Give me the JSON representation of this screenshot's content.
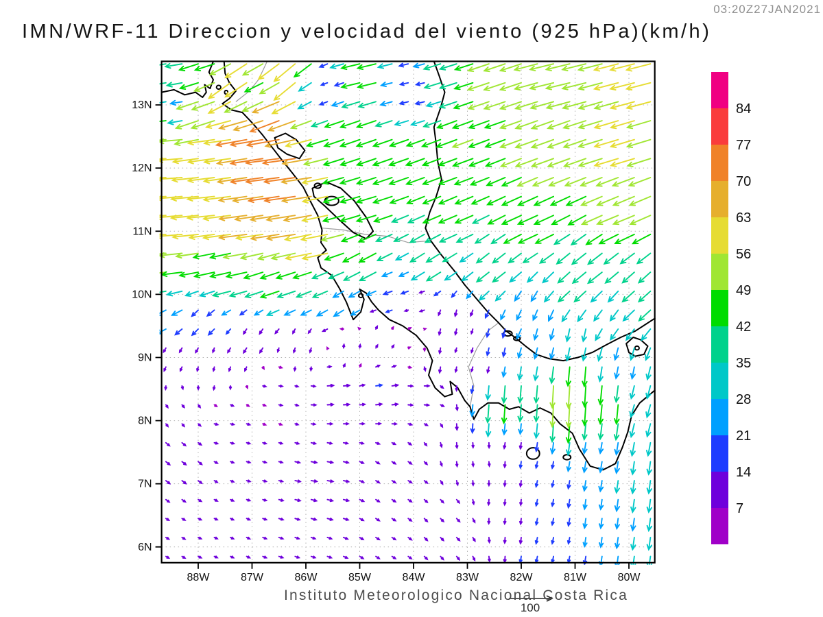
{
  "header": {
    "title": "IMN/WRF-11 Direccion y velocidad del viento (925 hPa)(km/h)",
    "timestamp": "03:20Z27JAN2021"
  },
  "footer": {
    "caption": "Instituto Meteorologico Nacional Costa Rica",
    "ref_arrow_label": "100"
  },
  "chart_data": {
    "type": "vector_field_map",
    "variable": "wind direction and speed",
    "pressure_level_hPa": 925,
    "units": "km/h",
    "model": "IMN/WRF-11",
    "valid_time": "03:20Z27JAN2021",
    "reference_vector": {
      "speed": 100,
      "label": "100"
    },
    "map_bounds": {
      "west_w": 88.68,
      "east_w": 79.52,
      "south": 5.75,
      "north": 13.69
    },
    "vector_grid": {
      "step_deg": 0.3,
      "lon_start_w": 88.6,
      "lon_cols": 31,
      "lat_start": 5.85,
      "lat_rows": 27
    },
    "lon_axis": {
      "ticks_w": [
        88,
        87,
        86,
        85,
        84,
        83,
        82,
        81,
        80
      ],
      "labels": [
        "88W",
        "87W",
        "86W",
        "85W",
        "84W",
        "83W",
        "82W",
        "81W",
        "80W"
      ]
    },
    "lat_axis": {
      "ticks_n": [
        6,
        7,
        8,
        9,
        10,
        11,
        12,
        13
      ],
      "labels": [
        "6N",
        "7N",
        "8N",
        "9N",
        "10N",
        "11N",
        "12N",
        "13N"
      ]
    },
    "speed_scale": {
      "levels": [
        7,
        14,
        21,
        28,
        35,
        42,
        49,
        56,
        63,
        70,
        77,
        84
      ],
      "colors": [
        "#A000C8",
        "#6E00DC",
        "#1E3CFF",
        "#00A0FF",
        "#00C8C8",
        "#00D28C",
        "#00DC00",
        "#A0E632",
        "#E6DC32",
        "#E6AF2D",
        "#F08228",
        "#FA3C3C",
        "#F00082"
      ]
    },
    "wind_anchors": [
      [
        88.55,
        13.55,
        -38,
        -6
      ],
      [
        87.6,
        13.6,
        -44,
        -14
      ],
      [
        87.35,
        13.45,
        -50,
        -36
      ],
      [
        86.2,
        13.5,
        -48,
        -40
      ],
      [
        86.7,
        13.2,
        -40,
        -20
      ],
      [
        85.6,
        13.35,
        -14,
        -5
      ],
      [
        84.9,
        13.55,
        -42,
        -10
      ],
      [
        84.0,
        13.3,
        -18,
        -4
      ],
      [
        83.3,
        13.55,
        -38,
        -12
      ],
      [
        82.4,
        13.45,
        -48,
        -16
      ],
      [
        81.2,
        13.55,
        -54,
        -13
      ],
      [
        79.8,
        13.6,
        -55,
        -14
      ],
      [
        88.3,
        13.0,
        -26,
        -4
      ],
      [
        87.9,
        12.9,
        -52,
        -18
      ],
      [
        86.6,
        12.9,
        -66,
        -26
      ],
      [
        86.75,
        12.45,
        -74,
        -12
      ],
      [
        86.5,
        12.0,
        -76,
        -10
      ],
      [
        86.3,
        11.65,
        -70,
        -10
      ],
      [
        87.6,
        12.3,
        -60,
        -8
      ],
      [
        88.55,
        12.4,
        -55,
        -4
      ],
      [
        88.55,
        11.9,
        -58,
        -4
      ],
      [
        87.9,
        11.4,
        -62,
        -6
      ],
      [
        88.55,
        11.0,
        -62,
        -5
      ],
      [
        87.2,
        11.0,
        -63,
        -8
      ],
      [
        86.3,
        11.1,
        -65,
        -10
      ],
      [
        85.75,
        10.85,
        -60,
        -12
      ],
      [
        88.55,
        10.45,
        -52,
        -5
      ],
      [
        87.4,
        10.5,
        -46,
        -10
      ],
      [
        88.55,
        10.15,
        -38,
        -6
      ],
      [
        86.5,
        10.3,
        -42,
        -14
      ],
      [
        88.55,
        9.85,
        -24,
        -12
      ],
      [
        85.0,
        12.6,
        -44,
        -15
      ],
      [
        84.3,
        12.1,
        -43,
        -15
      ],
      [
        84.9,
        11.4,
        -44,
        -13
      ],
      [
        83.0,
        12.4,
        -46,
        -17
      ],
      [
        81.4,
        12.4,
        -50,
        -18
      ],
      [
        80.1,
        12.4,
        -54,
        -16
      ],
      [
        80.1,
        11.4,
        -48,
        -20
      ],
      [
        81.7,
        11.3,
        -44,
        -20
      ],
      [
        83.2,
        11.3,
        -40,
        -17
      ],
      [
        83.3,
        12.0,
        -40,
        -15
      ],
      [
        84.8,
        10.55,
        -38,
        -20
      ],
      [
        83.6,
        10.55,
        -32,
        -20
      ],
      [
        82.4,
        10.45,
        -28,
        -22
      ],
      [
        80.6,
        10.45,
        -32,
        -25
      ],
      [
        79.8,
        10.0,
        -27,
        -24
      ],
      [
        84.35,
        10.05,
        -19,
        -7
      ],
      [
        85.5,
        10.2,
        -34,
        -14
      ],
      [
        85.3,
        9.9,
        -22,
        -14
      ],
      [
        83.9,
        9.85,
        -10,
        -3
      ],
      [
        80.9,
        10.1,
        -26,
        -24
      ],
      [
        80.3,
        9.7,
        -18,
        -24
      ],
      [
        88.0,
        9.55,
        -14,
        -14
      ],
      [
        87.0,
        9.3,
        -7,
        -11
      ],
      [
        86.1,
        9.1,
        -3,
        -10
      ],
      [
        85.2,
        9.1,
        1,
        8
      ],
      [
        84.6,
        9.25,
        4,
        7
      ],
      [
        84.05,
        9.45,
        6,
        3
      ],
      [
        87.8,
        8.9,
        -2,
        -9
      ],
      [
        88.45,
        8.9,
        -4,
        -9
      ],
      [
        88.3,
        8.25,
        5,
        -6
      ],
      [
        87.5,
        7.9,
        8,
        -2
      ],
      [
        86.5,
        8.6,
        8,
        -1
      ],
      [
        85.5,
        8.5,
        14,
        1
      ],
      [
        84.6,
        8.5,
        14,
        2
      ],
      [
        83.8,
        8.55,
        11,
        0
      ],
      [
        86.8,
        7.3,
        8,
        -2
      ],
      [
        85.8,
        7.0,
        13,
        -2
      ],
      [
        84.3,
        7.0,
        8,
        -5
      ],
      [
        88.45,
        7.3,
        9,
        -7
      ],
      [
        87.8,
        6.2,
        7,
        -3
      ],
      [
        86.0,
        6.1,
        9,
        -3
      ],
      [
        84.6,
        6.1,
        8,
        -5
      ],
      [
        83.4,
        6.4,
        7,
        -7
      ],
      [
        88.4,
        6.1,
        7,
        -4
      ],
      [
        85.8,
        6.7,
        12,
        -3
      ],
      [
        83.3,
        9.55,
        -3,
        -14
      ],
      [
        82.85,
        9.0,
        -3,
        -10
      ],
      [
        83.1,
        9.3,
        -3,
        -9
      ],
      [
        82.4,
        9.25,
        -4,
        -19
      ],
      [
        82.0,
        9.6,
        -10,
        -22
      ],
      [
        81.6,
        9.3,
        -6,
        -24
      ],
      [
        80.9,
        9.35,
        -6,
        -28
      ],
      [
        83.55,
        8.9,
        -2,
        -13
      ],
      [
        82.35,
        8.25,
        -3,
        -42
      ],
      [
        81.9,
        8.35,
        -3,
        -38
      ],
      [
        81.2,
        8.4,
        -3,
        -52
      ],
      [
        80.85,
        8.55,
        -3,
        -48
      ],
      [
        80.3,
        8.35,
        -4,
        -44
      ],
      [
        80.15,
        8.8,
        -5,
        -26
      ],
      [
        79.85,
        8.3,
        -8,
        -28
      ],
      [
        80.6,
        7.5,
        -4,
        -24
      ],
      [
        79.8,
        7.0,
        -4,
        -29
      ],
      [
        80.6,
        6.4,
        -3,
        -22
      ],
      [
        79.7,
        6.0,
        -4,
        -28
      ],
      [
        81.6,
        7.1,
        -3,
        -14
      ],
      [
        81.3,
        6.1,
        -3,
        -14
      ],
      [
        82.3,
        6.8,
        -1,
        -12
      ],
      [
        82.7,
        7.4,
        1,
        -10
      ],
      [
        82.2,
        7.7,
        -2,
        -13
      ]
    ],
    "coastlines": [
      [
        [
          88.68,
          13.2
        ],
        [
          88.45,
          13.24
        ],
        [
          88.25,
          13.16
        ],
        [
          88.05,
          13.2
        ],
        [
          87.92,
          13.12
        ],
        [
          87.85,
          13.2
        ],
        [
          87.88,
          13.32
        ],
        [
          87.78,
          13.26
        ],
        [
          87.72,
          13.4
        ],
        [
          87.8,
          13.52
        ],
        [
          87.72,
          13.69
        ]
      ],
      [
        [
          87.52,
          13.69
        ],
        [
          87.5,
          13.5
        ],
        [
          87.42,
          13.35
        ],
        [
          87.3,
          13.22
        ],
        [
          87.42,
          13.1
        ],
        [
          87.55,
          13.02
        ],
        [
          87.38,
          12.92
        ],
        [
          87.18,
          12.88
        ],
        [
          86.98,
          12.7
        ],
        [
          86.8,
          12.52
        ],
        [
          86.62,
          12.32
        ],
        [
          86.42,
          12.1
        ],
        [
          86.25,
          11.92
        ],
        [
          86.05,
          11.7
        ],
        [
          85.92,
          11.48
        ],
        [
          85.78,
          11.25
        ],
        [
          85.7,
          11.02
        ],
        [
          85.72,
          10.82
        ],
        [
          85.62,
          10.7
        ],
        [
          85.78,
          10.58
        ],
        [
          85.72,
          10.42
        ],
        [
          85.52,
          10.3
        ],
        [
          85.38,
          10.1
        ],
        [
          85.25,
          9.88
        ],
        [
          85.12,
          9.6
        ],
        [
          84.98,
          9.72
        ],
        [
          84.92,
          9.92
        ],
        [
          85.0,
          10.08
        ],
        [
          84.88,
          10.02
        ],
        [
          84.78,
          9.88
        ],
        [
          84.65,
          9.75
        ],
        [
          84.45,
          9.6
        ],
        [
          84.2,
          9.5
        ],
        [
          83.95,
          9.35
        ],
        [
          83.75,
          9.15
        ],
        [
          83.65,
          8.95
        ],
        [
          83.72,
          8.72
        ],
        [
          83.6,
          8.52
        ],
        [
          83.42,
          8.38
        ],
        [
          83.28,
          8.42
        ],
        [
          83.32,
          8.62
        ],
        [
          83.18,
          8.52
        ],
        [
          83.05,
          8.32
        ],
        [
          82.95,
          8.22
        ],
        [
          82.88,
          8.02
        ],
        [
          82.78,
          8.18
        ],
        [
          82.62,
          8.28
        ],
        [
          82.42,
          8.28
        ],
        [
          82.22,
          8.18
        ],
        [
          82.05,
          8.22
        ],
        [
          81.85,
          8.12
        ],
        [
          81.65,
          8.2
        ],
        [
          81.45,
          8.12
        ],
        [
          81.28,
          7.95
        ],
        [
          81.05,
          7.8
        ],
        [
          80.92,
          7.55
        ],
        [
          80.72,
          7.28
        ],
        [
          80.48,
          7.22
        ],
        [
          80.25,
          7.32
        ],
        [
          80.12,
          7.58
        ],
        [
          80.02,
          7.82
        ],
        [
          79.95,
          8.08
        ],
        [
          79.8,
          8.28
        ],
        [
          79.52,
          8.48
        ]
      ],
      [
        [
          83.62,
          13.69
        ],
        [
          83.52,
          13.45
        ],
        [
          83.42,
          13.2
        ],
        [
          83.5,
          12.95
        ],
        [
          83.62,
          12.65
        ],
        [
          83.58,
          12.38
        ],
        [
          83.55,
          12.1
        ],
        [
          83.48,
          11.82
        ],
        [
          83.58,
          11.55
        ],
        [
          83.7,
          11.3
        ],
        [
          83.78,
          11.05
        ],
        [
          83.68,
          10.85
        ],
        [
          83.48,
          10.62
        ],
        [
          83.25,
          10.38
        ],
        [
          83.05,
          10.15
        ],
        [
          82.85,
          9.95
        ],
        [
          82.62,
          9.72
        ],
        [
          82.42,
          9.55
        ],
        [
          82.28,
          9.42
        ],
        [
          82.12,
          9.32
        ],
        [
          81.92,
          9.18
        ],
        [
          81.72,
          9.05
        ],
        [
          81.48,
          8.98
        ],
        [
          81.22,
          8.95
        ],
        [
          80.95,
          9.0
        ],
        [
          80.68,
          9.08
        ],
        [
          80.42,
          9.2
        ],
        [
          80.15,
          9.32
        ],
        [
          79.88,
          9.42
        ],
        [
          79.7,
          9.52
        ],
        [
          79.52,
          9.62
        ]
      ]
    ],
    "lakes": [
      [
        [
          85.88,
          11.68
        ],
        [
          85.62,
          11.78
        ],
        [
          85.35,
          11.68
        ],
        [
          85.1,
          11.48
        ],
        [
          84.88,
          11.22
        ],
        [
          84.75,
          11.0
        ],
        [
          84.88,
          10.88
        ],
        [
          85.12,
          10.98
        ],
        [
          85.38,
          11.18
        ],
        [
          85.65,
          11.4
        ],
        [
          85.85,
          11.55
        ]
      ],
      [
        [
          86.58,
          12.48
        ],
        [
          86.38,
          12.55
        ],
        [
          86.18,
          12.45
        ],
        [
          86.02,
          12.28
        ],
        [
          86.12,
          12.15
        ],
        [
          86.35,
          12.22
        ],
        [
          86.52,
          12.32
        ]
      ],
      [
        [
          80.05,
          9.22
        ],
        [
          79.92,
          9.32
        ],
        [
          79.78,
          9.28
        ],
        [
          79.65,
          9.18
        ],
        [
          79.72,
          9.05
        ],
        [
          79.88,
          9.02
        ],
        [
          80.0,
          9.08
        ]
      ]
    ],
    "borders": [
      [
        [
          87.3,
          13.05
        ],
        [
          87.05,
          13.22
        ],
        [
          86.88,
          13.4
        ],
        [
          86.78,
          13.58
        ],
        [
          86.72,
          13.69
        ]
      ],
      [
        [
          85.7,
          11.05
        ],
        [
          85.3,
          11.02
        ],
        [
          84.9,
          10.95
        ],
        [
          84.48,
          10.92
        ],
        [
          84.1,
          10.82
        ],
        [
          83.68,
          10.85
        ]
      ],
      [
        [
          82.95,
          8.22
        ],
        [
          82.88,
          8.55
        ],
        [
          82.98,
          8.85
        ],
        [
          82.82,
          9.15
        ],
        [
          82.62,
          9.42
        ],
        [
          82.42,
          9.55
        ]
      ]
    ],
    "islands": [
      [
        85.52,
        11.48,
        0.13,
        0.07
      ],
      [
        85.78,
        11.72,
        0.06,
        0.04
      ],
      [
        82.25,
        9.38,
        0.08,
        0.04
      ],
      [
        82.08,
        9.3,
        0.06,
        0.03
      ],
      [
        81.78,
        7.48,
        0.12,
        0.09
      ],
      [
        81.15,
        7.42,
        0.07,
        0.04
      ],
      [
        87.62,
        13.28,
        0.04,
        0.03
      ],
      [
        87.48,
        13.2,
        0.03,
        0.03
      ],
      [
        84.98,
        9.98,
        0.04,
        0.03
      ],
      [
        79.85,
        9.15,
        0.04,
        0.03
      ]
    ]
  }
}
